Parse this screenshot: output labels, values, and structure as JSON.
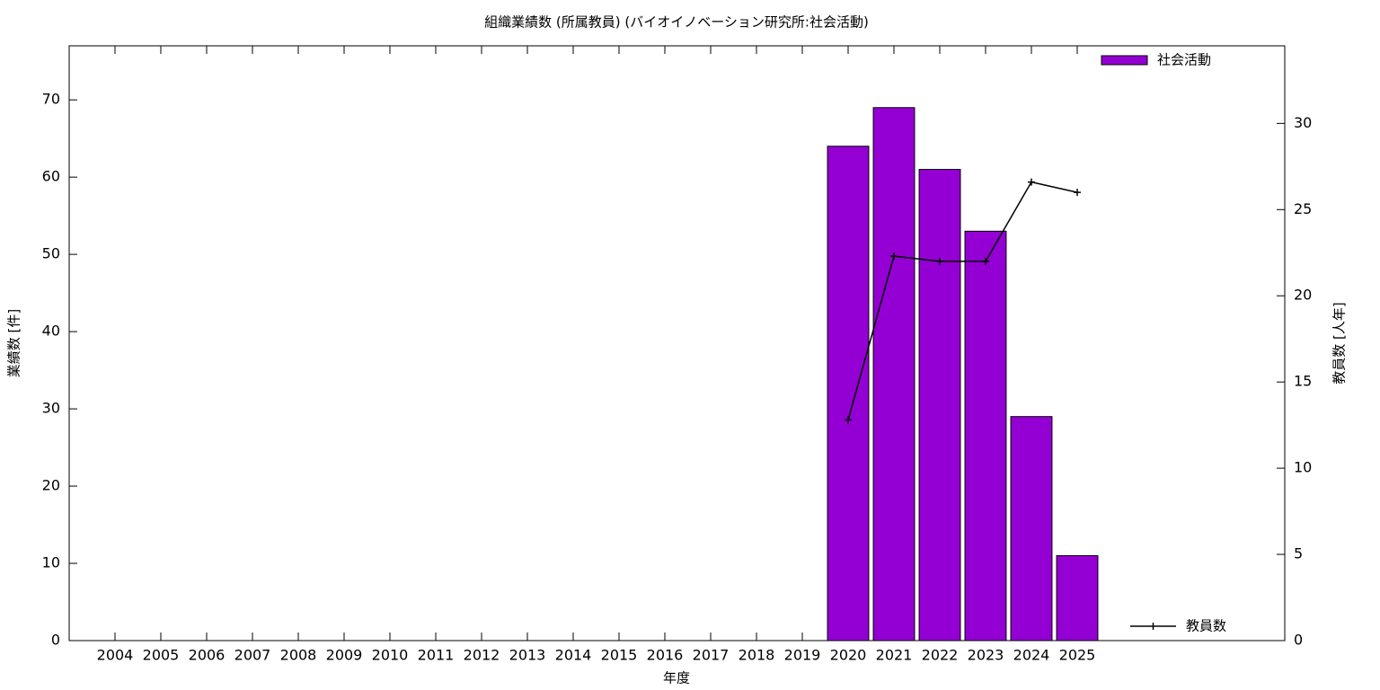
{
  "chart_data": {
    "type": "bar",
    "title": "組織業績数 (所属教員) (バイオイノベーション研究所:社会活動)",
    "xlabel": "年度",
    "ylabel": "業績数 [件]",
    "y2label": "教員数 [人年]",
    "categories": [
      "2004",
      "2005",
      "2006",
      "2007",
      "2008",
      "2009",
      "2010",
      "2011",
      "2012",
      "2013",
      "2014",
      "2015",
      "2016",
      "2017",
      "2018",
      "2019",
      "2020",
      "2021",
      "2022",
      "2023",
      "2024",
      "2025"
    ],
    "series": [
      {
        "name": "社会活動",
        "type": "bar",
        "color": "#9400d3",
        "values": [
          null,
          null,
          null,
          null,
          null,
          null,
          null,
          null,
          null,
          null,
          null,
          null,
          null,
          null,
          null,
          null,
          64,
          69,
          61,
          53,
          29,
          11
        ]
      },
      {
        "name": "教員数",
        "type": "line",
        "color": "#000000",
        "axis": "y2",
        "values": [
          null,
          null,
          null,
          null,
          null,
          null,
          null,
          null,
          null,
          null,
          null,
          null,
          null,
          null,
          null,
          null,
          12.8,
          22.3,
          22.0,
          22.0,
          26.6,
          26.0
        ]
      }
    ],
    "ylim": [
      0,
      77
    ],
    "yticks": [
      0,
      10,
      20,
      30,
      40,
      50,
      60,
      70
    ],
    "y2lim": [
      0,
      34.5
    ],
    "y2ticks": [
      0,
      5,
      10,
      15,
      20,
      25,
      30
    ],
    "grid": false
  }
}
